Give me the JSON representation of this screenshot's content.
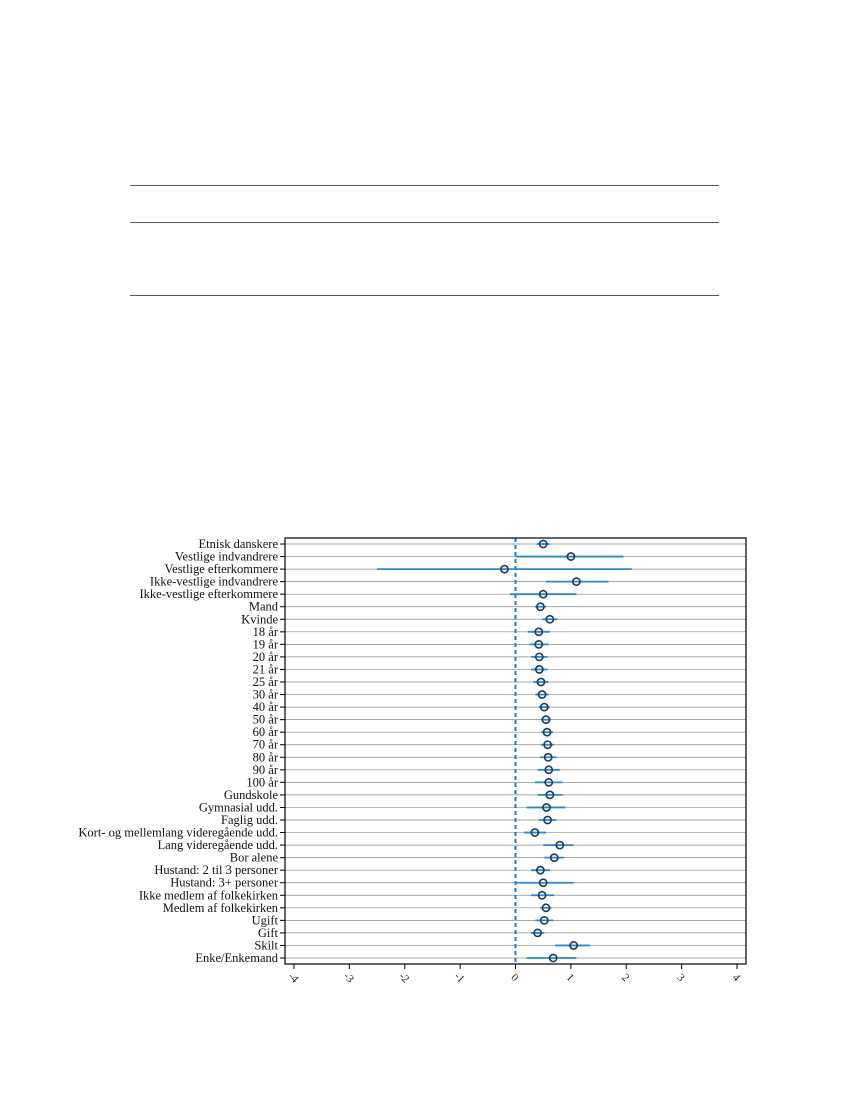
{
  "page": {
    "table_rules": 3
  },
  "chart_data": {
    "type": "scatter",
    "style": "coefficient-plot with confidence intervals",
    "title": "",
    "xlabel": "",
    "ylabel": "",
    "xlim": [
      -4,
      4
    ],
    "xticks": [
      "-4",
      "-3",
      "-2",
      "-1",
      "0",
      "1",
      "2",
      "3",
      "4"
    ],
    "reference_line": {
      "x": 0,
      "style": "dashed",
      "color": "#1f78d1"
    },
    "colors": {
      "ci": "#2d88c8",
      "marker": "#1a3a5c",
      "ref": "#1f78d1"
    },
    "grid": "horizontal lines at each category",
    "categories": [
      "Etnisk danskere",
      "Vestlige indvandrere",
      "Vestlige efterkommere",
      "Ikke-vestlige indvandrere",
      "Ikke-vestlige efterkommere",
      "Mand",
      "Kvinde",
      "18 år",
      "19 år",
      "20 år",
      "21 år",
      "25 år",
      "30 år",
      "40 år",
      "50 år",
      "60 år",
      "70 år",
      "80 år",
      "90 år",
      "100 år",
      "Gundskole",
      "Gymnasial udd.",
      "Faglig udd.",
      "Kort- og mellemlang videregående udd.",
      "Lang videregående udd.",
      "Bor alene",
      "Hustand: 2 til 3 personer",
      "Hustand: 3+ personer",
      "Ikke medlem af folkekirken",
      "Medlem af folkekirken",
      "Ugift",
      "Gift",
      "Skilt",
      "Enke/Enkemand"
    ],
    "estimates": [
      0.5,
      1.0,
      -0.2,
      1.1,
      0.5,
      0.45,
      0.62,
      0.42,
      0.42,
      0.43,
      0.43,
      0.46,
      0.48,
      0.52,
      0.55,
      0.57,
      0.58,
      0.59,
      0.6,
      0.6,
      0.62,
      0.56,
      0.58,
      0.35,
      0.8,
      0.7,
      0.45,
      0.5,
      0.48,
      0.55,
      0.52,
      0.4,
      1.05,
      0.68
    ],
    "ci_low": [
      0.38,
      0.0,
      -2.5,
      0.55,
      -0.1,
      0.35,
      0.48,
      0.22,
      0.25,
      0.28,
      0.28,
      0.32,
      0.36,
      0.42,
      0.46,
      0.46,
      0.46,
      0.44,
      0.4,
      0.35,
      0.4,
      0.2,
      0.42,
      0.15,
      0.5,
      0.52,
      0.28,
      0.0,
      0.28,
      0.45,
      0.36,
      0.28,
      0.72,
      0.2
    ],
    "ci_high": [
      0.62,
      1.95,
      2.1,
      1.68,
      1.1,
      0.55,
      0.76,
      0.62,
      0.6,
      0.58,
      0.58,
      0.6,
      0.6,
      0.62,
      0.64,
      0.68,
      0.7,
      0.74,
      0.8,
      0.85,
      0.85,
      0.9,
      0.74,
      0.55,
      1.05,
      0.88,
      0.62,
      1.05,
      0.7,
      0.65,
      0.68,
      0.52,
      1.35,
      1.1
    ]
  }
}
